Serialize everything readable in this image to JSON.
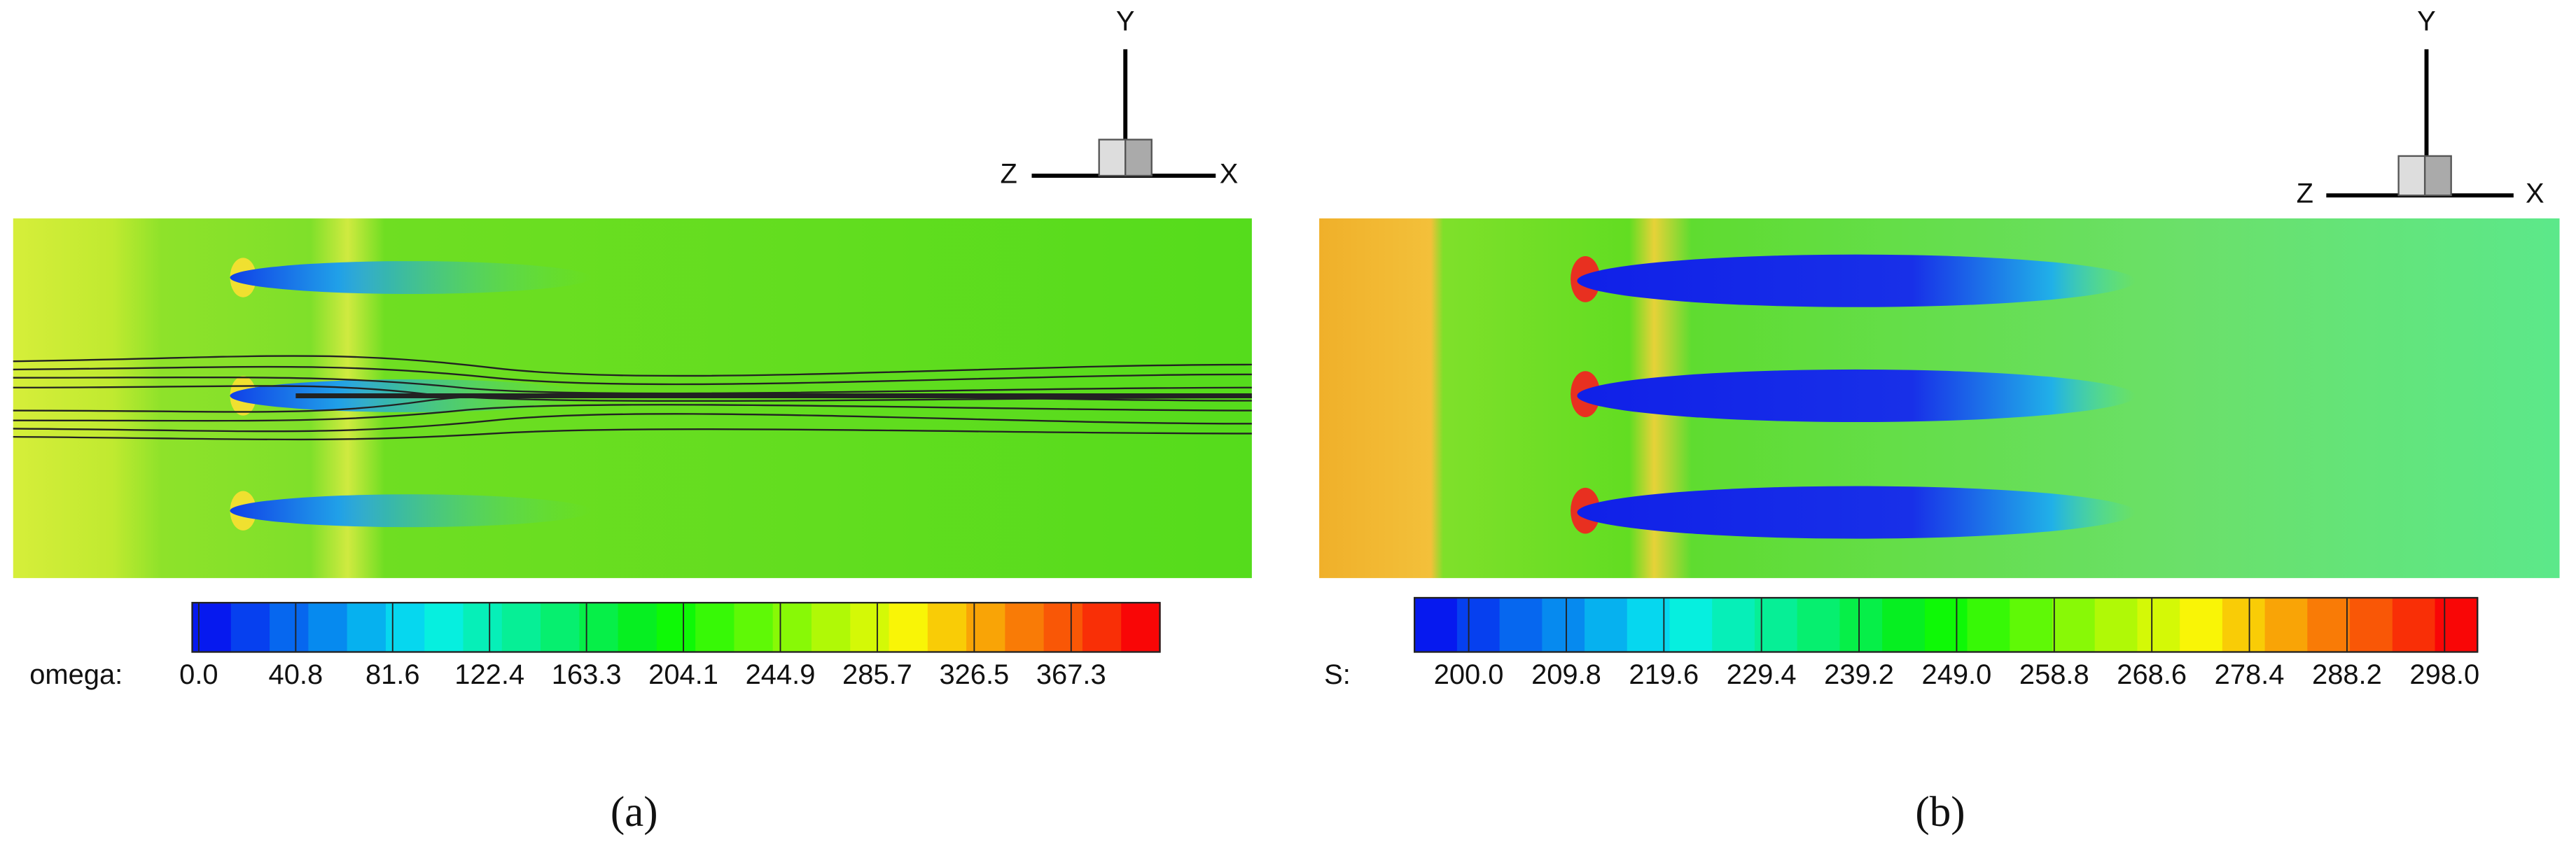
{
  "panels": [
    {
      "caption": "(a)",
      "colorbar": {
        "label": "omega:",
        "ticks": [
          "0.0",
          "40.8",
          "81.6",
          "122.4",
          "163.3",
          "204.1",
          "244.9",
          "285.7",
          "326.5",
          "367.3"
        ]
      },
      "axes": {
        "y": "Y",
        "z": "Z",
        "x": "X"
      }
    },
    {
      "caption": "(b)",
      "colorbar": {
        "label": "S:",
        "ticks": [
          "200.0",
          "209.8",
          "219.6",
          "229.4",
          "239.2",
          "249.0",
          "258.8",
          "268.6",
          "278.4",
          "288.2",
          "298.0"
        ]
      },
      "axes": {
        "y": "Y",
        "z": "Z",
        "x": "X"
      }
    }
  ]
}
